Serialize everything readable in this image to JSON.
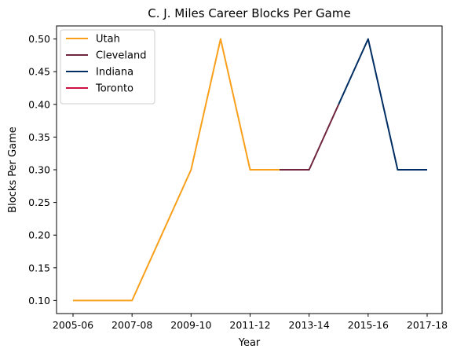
{
  "chart_data": {
    "type": "line",
    "title": "C. J. Miles Career Blocks Per Game",
    "xlabel": "Year",
    "ylabel": "Blocks Per Game",
    "x": [
      "2005-06",
      "2006-07",
      "2007-08",
      "2008-09",
      "2009-10",
      "2010-11",
      "2011-12",
      "2012-13",
      "2013-14",
      "2014-15",
      "2015-16",
      "2016-17",
      "2017-18"
    ],
    "x_ticks": [
      "2005-06",
      "2007-08",
      "2009-10",
      "2011-12",
      "2013-14",
      "2015-16",
      "2017-18"
    ],
    "y_ticks": [
      "0.10",
      "0.15",
      "0.20",
      "0.25",
      "0.30",
      "0.35",
      "0.40",
      "0.45",
      "0.50"
    ],
    "ylim": [
      0.08,
      0.52
    ],
    "grid": false,
    "legend_position": "top-left",
    "series": [
      {
        "name": "Utah",
        "color": "#F9A01B",
        "values": [
          0.1,
          0.1,
          0.1,
          0.2,
          0.3,
          0.5,
          0.3,
          0.3,
          null,
          null,
          null,
          null,
          null
        ]
      },
      {
        "name": "Cleveland",
        "color": "#6F263D",
        "values": [
          null,
          null,
          null,
          null,
          null,
          null,
          null,
          0.3,
          0.3,
          0.4,
          null,
          null,
          null
        ]
      },
      {
        "name": "Indiana",
        "color": "#002D62",
        "values": [
          null,
          null,
          null,
          null,
          null,
          null,
          null,
          null,
          null,
          0.4,
          0.5,
          0.3,
          0.3
        ]
      },
      {
        "name": "Toronto",
        "color": "#CE1141",
        "values": [
          null,
          null,
          null,
          null,
          null,
          null,
          null,
          null,
          null,
          null,
          null,
          null,
          null
        ]
      }
    ]
  }
}
